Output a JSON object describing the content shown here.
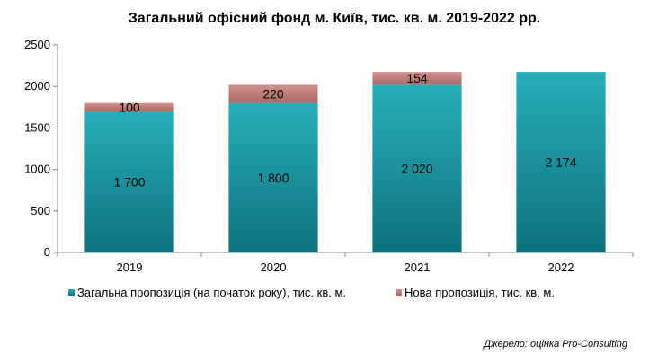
{
  "chart_data": {
    "type": "bar",
    "stacked": true,
    "title": "Загальний офісний фонд м. Київ, тис. кв. м. 2019-2022 рр.",
    "categories": [
      "2019",
      "2020",
      "2021",
      "2022"
    ],
    "series": [
      {
        "name": "Загальна пропозиція (на початок року), тис. кв. м.",
        "values": [
          1700,
          1800,
          2020,
          2174
        ],
        "labels": [
          "1 700",
          "1 800",
          "2 020",
          "2 174"
        ],
        "color": "#1f9ea8"
      },
      {
        "name": "Нова пропозиція, тис. кв. м.",
        "values": [
          100,
          220,
          154,
          null
        ],
        "labels": [
          "100",
          "220",
          "154",
          ""
        ],
        "color": "#c0817b"
      }
    ],
    "y_ticks": [
      "0",
      "500",
      "1000",
      "1500",
      "2000",
      "2500"
    ],
    "ylim": [
      0,
      2500
    ],
    "grid": false,
    "legend_position": "bottom",
    "source_note": "Джерело: оцінка Pro-Consulting"
  }
}
